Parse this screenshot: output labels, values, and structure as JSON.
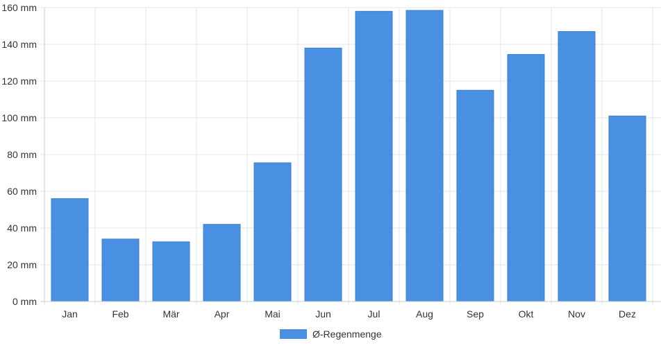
{
  "chart_data": {
    "type": "bar",
    "categories": [
      "Jan",
      "Feb",
      "Mär",
      "Apr",
      "Mai",
      "Jun",
      "Jul",
      "Aug",
      "Sep",
      "Okt",
      "Nov",
      "Dez"
    ],
    "series": [
      {
        "name": "Ø-Regenmenge",
        "values": [
          56,
          34,
          32.5,
          42,
          75.5,
          138,
          158,
          158.5,
          115,
          134.5,
          147,
          101
        ],
        "color": "#4a90e2"
      }
    ],
    "unit": "mm",
    "yticks": [
      "0 mm",
      "20 mm",
      "40 mm",
      "60 mm",
      "80 mm",
      "100 mm",
      "120 mm",
      "140 mm",
      "160 mm"
    ],
    "ylim": [
      0,
      160
    ],
    "grid": true,
    "legend": "bottom-center",
    "title": "",
    "xlabel": "",
    "ylabel": ""
  }
}
